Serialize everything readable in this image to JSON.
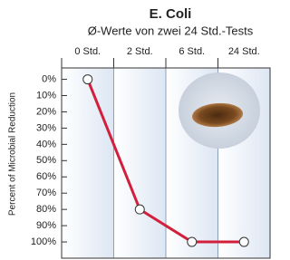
{
  "chart_data": {
    "type": "line",
    "title": "E. Coli",
    "subtitle": "Ø-Werte von zwei 24 Std.-Tests",
    "y_label": "Percent of Microbial Reduction",
    "categories": [
      "0 Std.",
      "2 Std.",
      "6 Std.",
      "24 Std."
    ],
    "series": [
      {
        "name": "E. Coli",
        "color": "#d21f3c",
        "values": [
          0,
          80,
          100,
          100
        ]
      }
    ],
    "ylim": [
      -7,
      110
    ],
    "y_inverted": true,
    "yticks": [
      {
        "value": 0,
        "label": "0%"
      },
      {
        "value": 10,
        "label": "10%"
      },
      {
        "value": 20,
        "label": "20%"
      },
      {
        "value": 30,
        "label": "30%"
      },
      {
        "value": 40,
        "label": "40%"
      },
      {
        "value": 50,
        "label": "50%"
      },
      {
        "value": 60,
        "label": "60%"
      },
      {
        "value": 70,
        "label": "70%"
      },
      {
        "value": 80,
        "label": "80%"
      },
      {
        "value": 90,
        "label": "90%"
      },
      {
        "value": 100,
        "label": "100%"
      }
    ],
    "grid": true
  }
}
